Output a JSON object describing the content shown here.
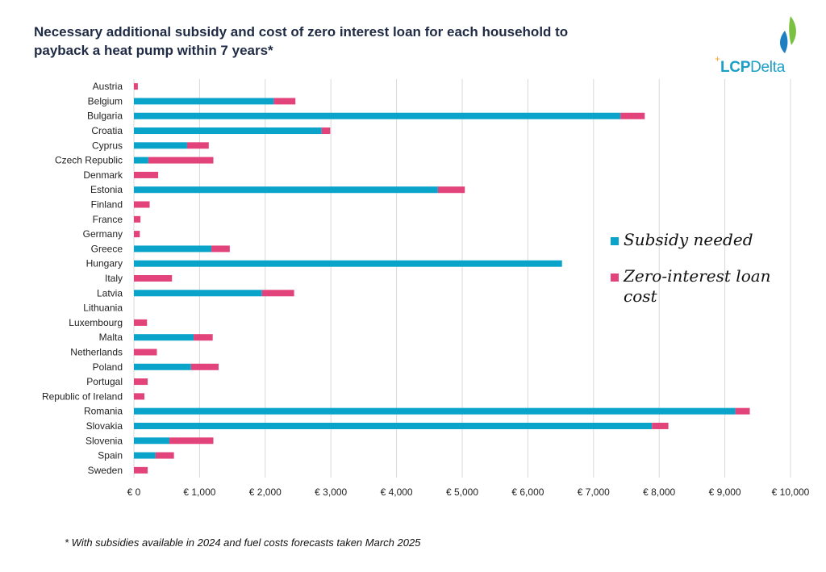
{
  "title": "Necessary additional subsidy and cost of zero interest loan for each household to payback a heat pump within 7 years*",
  "logo": {
    "plus": "+",
    "text_bold": "LCP",
    "text_regular": "Delta"
  },
  "footnote": "* With subsidies available in 2024 and fuel costs forecasts taken March 2025",
  "colors": {
    "subsidy": "#0aa3c9",
    "loan": "#e2437a",
    "grid": "#d9d9d9",
    "text": "#222222",
    "title": "#1f2a44"
  },
  "chart_data": {
    "type": "bar",
    "orientation": "horizontal",
    "stacked": true,
    "categories": [
      "Austria",
      "Belgium",
      "Bulgaria",
      "Croatia",
      "Cyprus",
      "Czech Republic",
      "Denmark",
      "Estonia",
      "Finland",
      "France",
      "Germany",
      "Greece",
      "Hungary",
      "Italy",
      "Latvia",
      "Lithuania",
      "Luxembourg",
      "Malta",
      "Netherlands",
      "Poland",
      "Portugal",
      "Republic of Ireland",
      "Romania",
      "Slovakia",
      "Slovenia",
      "Spain",
      "Sweden"
    ],
    "series": [
      {
        "name": "Subsidy needed",
        "color": "#0aa3c9",
        "values": [
          0,
          2130,
          7410,
          2860,
          810,
          220,
          0,
          4630,
          0,
          0,
          0,
          1180,
          6520,
          0,
          1950,
          0,
          0,
          910,
          0,
          870,
          0,
          0,
          9160,
          7890,
          540,
          330,
          0
        ]
      },
      {
        "name": "Zero-interest loan cost",
        "color": "#e2437a",
        "values": [
          60,
          330,
          370,
          130,
          330,
          990,
          370,
          410,
          240,
          100,
          90,
          280,
          0,
          580,
          490,
          0,
          200,
          290,
          350,
          420,
          210,
          160,
          220,
          250,
          670,
          280,
          210
        ]
      }
    ],
    "xlim": [
      0,
      10000
    ],
    "xticks": [
      0,
      1000,
      2000,
      3000,
      4000,
      5000,
      6000,
      7000,
      8000,
      9000,
      10000
    ],
    "xtick_labels": [
      "€ 0",
      "€ 1,000",
      "€ 2,000",
      "€ 3,000",
      "€ 4,000",
      "€ 5,000",
      "€ 6,000",
      "€ 7,000",
      "€ 8,000",
      "€ 9,000",
      "€ 10,000"
    ],
    "grid": "vertical",
    "legend_position": "right"
  }
}
